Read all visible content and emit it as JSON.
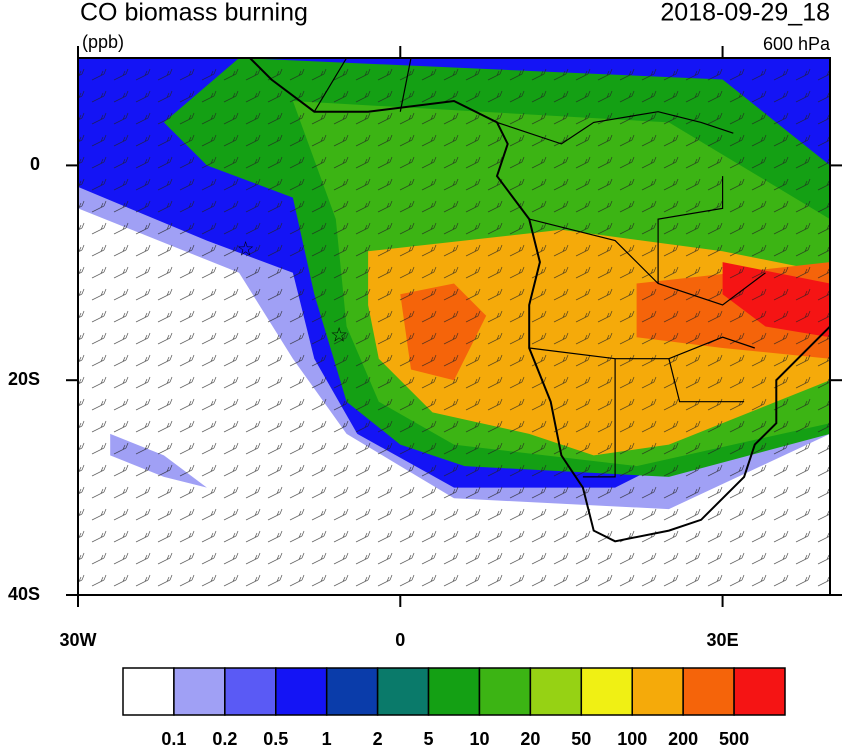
{
  "map": {
    "title": "CO biomass burning",
    "units": "(ppb)",
    "datetime": "2018-09-29_18",
    "level": "600 hPa",
    "xlim": [
      -30,
      40
    ],
    "ylim": [
      -40,
      10
    ],
    "xticks": [
      {
        "value": -30,
        "label": "30W"
      },
      0,
      {
        "value": 30,
        "label": "30E"
      }
    ],
    "yticks": [
      0,
      {
        "value": -20,
        "label": "20S"
      },
      {
        "value": -40,
        "label": "40S"
      }
    ],
    "colorbar": {
      "colors": [
        "#ffffff",
        "#a0a0f5",
        "#5a5af5",
        "#1414f5",
        "#0a3caa",
        "#0a7a6a",
        "#14a014",
        "#3cb414",
        "#96d214",
        "#f0f014",
        "#f5aa0a",
        "#f5640a",
        "#f51414"
      ],
      "levels": [
        0.1,
        0.2,
        0.5,
        1,
        2,
        5,
        10,
        20,
        50,
        100,
        200,
        500
      ]
    }
  }
}
